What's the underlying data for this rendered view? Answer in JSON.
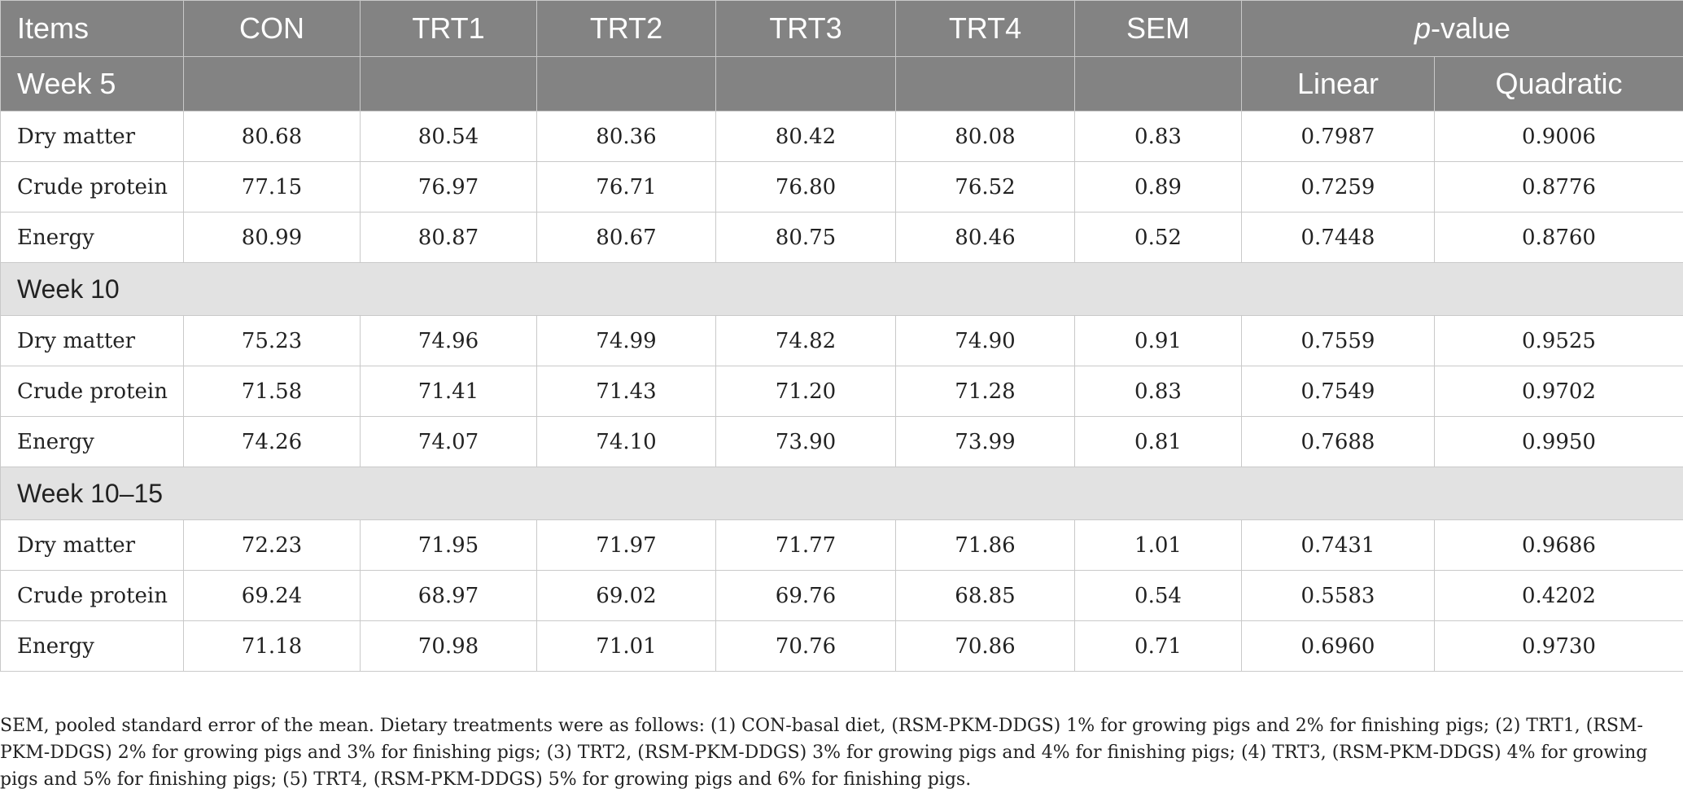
{
  "header": {
    "items": "Items",
    "con": "CON",
    "trt1": "TRT1",
    "trt2": "TRT2",
    "trt3": "TRT3",
    "trt4": "TRT4",
    "sem": "SEM",
    "pvalue_p": "p",
    "pvalue_rest": "-value",
    "week5": "Week 5",
    "linear": "Linear",
    "quadratic": "Quadratic"
  },
  "sections": [
    {
      "rows": [
        {
          "item": "Dry matter",
          "con": "80.68",
          "trt1": "80.54",
          "trt2": "80.36",
          "trt3": "80.42",
          "trt4": "80.08",
          "sem": "0.83",
          "linear": "0.7987",
          "quadratic": "0.9006"
        },
        {
          "item": "Crude protein",
          "con": "77.15",
          "trt1": "76.97",
          "trt2": "76.71",
          "trt3": "76.80",
          "trt4": "76.52",
          "sem": "0.89",
          "linear": "0.7259",
          "quadratic": "0.8776"
        },
        {
          "item": "Energy",
          "con": "80.99",
          "trt1": "80.87",
          "trt2": "80.67",
          "trt3": "80.75",
          "trt4": "80.46",
          "sem": "0.52",
          "linear": "0.7448",
          "quadratic": "0.8760"
        }
      ]
    },
    {
      "title": "Week 10",
      "rows": [
        {
          "item": "Dry matter",
          "con": "75.23",
          "trt1": "74.96",
          "trt2": "74.99",
          "trt3": "74.82",
          "trt4": "74.90",
          "sem": "0.91",
          "linear": "0.7559",
          "quadratic": "0.9525"
        },
        {
          "item": "Crude protein",
          "con": "71.58",
          "trt1": "71.41",
          "trt2": "71.43",
          "trt3": "71.20",
          "trt4": "71.28",
          "sem": "0.83",
          "linear": "0.7549",
          "quadratic": "0.9702"
        },
        {
          "item": "Energy",
          "con": "74.26",
          "trt1": "74.07",
          "trt2": "74.10",
          "trt3": "73.90",
          "trt4": "73.99",
          "sem": "0.81",
          "linear": "0.7688",
          "quadratic": "0.9950"
        }
      ]
    },
    {
      "title": "Week 10–15",
      "rows": [
        {
          "item": "Dry matter",
          "con": "72.23",
          "trt1": "71.95",
          "trt2": "71.97",
          "trt3": "71.77",
          "trt4": "71.86",
          "sem": "1.01",
          "linear": "0.7431",
          "quadratic": "0.9686"
        },
        {
          "item": "Crude protein",
          "con": "69.24",
          "trt1": "68.97",
          "trt2": "69.02",
          "trt3": "69.76",
          "trt4": "68.85",
          "sem": "0.54",
          "linear": "0.5583",
          "quadratic": "0.4202"
        },
        {
          "item": "Energy",
          "con": "71.18",
          "trt1": "70.98",
          "trt2": "71.01",
          "trt3": "70.76",
          "trt4": "70.86",
          "sem": "0.71",
          "linear": "0.6960",
          "quadratic": "0.9730"
        }
      ]
    }
  ],
  "footnote": "SEM, pooled standard error of the mean. Dietary treatments were as follows: (1) CON-basal diet, (RSM-PKM-DDGS) 1% for growing pigs and 2% for finishing pigs; (2) TRT1, (RSM-PKM-DDGS) 2% for growing pigs and 3% for finishing pigs; (3) TRT2, (RSM-PKM-DDGS) 3% for growing pigs and 4% for finishing pigs; (4) TRT3, (RSM-PKM-DDGS) 4% for growing pigs and 5% for finishing pigs; (5) TRT4, (RSM-PKM-DDGS) 5% for growing pigs and 6% for finishing pigs."
}
